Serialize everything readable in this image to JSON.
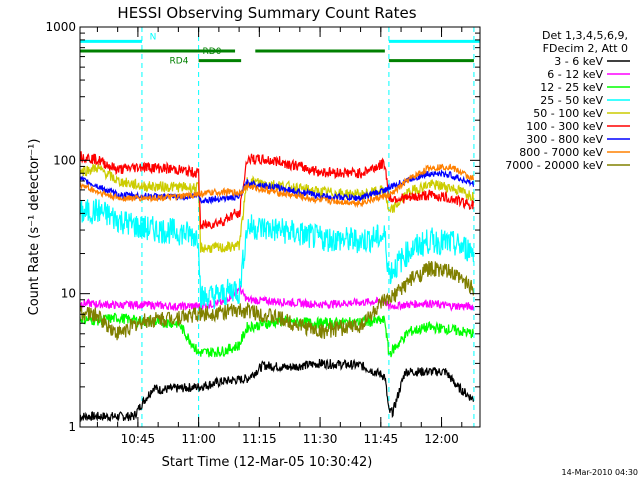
{
  "chart_data": {
    "type": "line",
    "title": "HESSI Observing Summary Count Rates",
    "xlabel": "Start Time (12-Mar-05 10:30:42)",
    "ylabel": "Count Rate (s⁻¹ detector⁻¹)",
    "yscale": "log",
    "ylim": [
      1,
      1000
    ],
    "xlim": [
      "10:30:42",
      "12:09:30"
    ],
    "x_ticks": [
      "10:45",
      "11:00",
      "11:15",
      "11:30",
      "11:45",
      "12:00"
    ],
    "y_ticks": [
      "1",
      "10",
      "100",
      "1000"
    ],
    "footer": "14-Mar-2010 04:30",
    "legend_header": [
      "Det 1,3,4,5,6,9,",
      "FDecim 2, Att 0"
    ],
    "night_boundaries": [
      "10:30:42",
      "10:46:00",
      "11:00:00",
      "11:47:00",
      "12:08:00"
    ],
    "bars": [
      {
        "label": "N",
        "color": "#00ffff",
        "y": 780,
        "segments": [
          [
            "10:30:42",
            "10:46:00"
          ],
          [
            "11:47:00",
            "12:09:30"
          ]
        ]
      },
      {
        "label": "RD0",
        "color": "#008000",
        "y": 660,
        "segments": [
          [
            "10:30:42",
            "11:09:00"
          ],
          [
            "11:14:00",
            "11:46:00"
          ]
        ]
      },
      {
        "label": "RD4",
        "color": "#008000",
        "y": 560,
        "segments": [
          [
            "11:00:00",
            "11:10:30"
          ],
          [
            "11:47:00",
            "12:08:00"
          ]
        ]
      }
    ],
    "series": [
      {
        "name": "3 - 6 keV",
        "color": "#000000",
        "x": [
          "10:30:42",
          "10:44:00",
          "10:46:00",
          "10:49:00",
          "10:50:00",
          "11:00:00",
          "11:06:00",
          "11:12:00",
          "11:16:00",
          "11:22:00",
          "11:30:00",
          "11:40:00",
          "11:46:00",
          "11:47:00",
          "11:48:00",
          "11:51:00",
          "12:01:00",
          "12:04:00",
          "12:08:00"
        ],
        "y": [
          1.2,
          1.2,
          1.5,
          2.0,
          1.9,
          2.0,
          2.2,
          2.3,
          2.9,
          2.8,
          3.0,
          2.9,
          2.4,
          1.3,
          1.3,
          2.6,
          2.6,
          2.0,
          1.6
        ]
      },
      {
        "name": "6 - 12 keV",
        "color": "#ff00ff",
        "x": [
          "10:30:42",
          "10:40:00",
          "10:46:00",
          "10:55:00",
          "11:00:00",
          "11:06:00",
          "11:10:00",
          "11:12:00",
          "11:20:00",
          "11:30:00",
          "11:40:00",
          "11:46:00",
          "11:47:00",
          "11:50:00",
          "11:56:00",
          "12:02:00",
          "12:08:00"
        ],
        "y": [
          8.5,
          8.2,
          8.3,
          8.0,
          8.1,
          8.6,
          11.0,
          9.0,
          8.7,
          8.3,
          8.6,
          8.8,
          8.0,
          8.2,
          8.5,
          8.1,
          8.0
        ]
      },
      {
        "name": "12 - 25 keV",
        "color": "#00ff00",
        "x": [
          "10:30:42",
          "10:35:00",
          "10:40:00",
          "10:46:00",
          "10:55:00",
          "11:00:00",
          "11:06:00",
          "11:10:00",
          "11:12:00",
          "11:20:00",
          "11:30:00",
          "11:40:00",
          "11:46:00",
          "11:47:00",
          "11:52:00",
          "11:57:00",
          "12:02:00",
          "12:08:00"
        ],
        "y": [
          6.5,
          6.3,
          6.6,
          6.2,
          6.0,
          3.6,
          3.7,
          4.1,
          5.6,
          6.2,
          6.0,
          6.1,
          6.3,
          3.5,
          5.2,
          5.6,
          5.4,
          5.0
        ]
      },
      {
        "name": "25 - 50 keV",
        "color": "#00ffff",
        "x": [
          "10:30:42",
          "10:35:00",
          "10:40:00",
          "10:46:00",
          "10:55:00",
          "11:00:00",
          "11:00:30",
          "11:06:00",
          "11:09:00",
          "11:10:00",
          "11:12:00",
          "11:20:00",
          "11:30:00",
          "11:40:00",
          "11:46:00",
          "11:47:00",
          "11:52:00",
          "11:57:00",
          "12:02:00",
          "12:08:00"
        ],
        "y": [
          40,
          42,
          36,
          31,
          29,
          27,
          9.3,
          9.8,
          11,
          10,
          32,
          30,
          26,
          25,
          27,
          14,
          21,
          25,
          24,
          21
        ]
      },
      {
        "name": "50 - 100 keV",
        "color": "#cccc00",
        "x": [
          "10:30:42",
          "10:35:00",
          "10:40:00",
          "10:46:00",
          "10:55:00",
          "11:00:00",
          "11:00:30",
          "11:06:00",
          "11:10:00",
          "11:12:00",
          "11:20:00",
          "11:30:00",
          "11:40:00",
          "11:46:00",
          "11:47:00",
          "11:52:00",
          "11:57:00",
          "12:02:00",
          "12:08:00"
        ],
        "y": [
          82,
          88,
          70,
          64,
          63,
          62,
          22,
          22,
          23,
          70,
          65,
          58,
          55,
          60,
          40,
          58,
          66,
          63,
          54
        ]
      },
      {
        "name": "100 - 300 keV",
        "color": "#ff0000",
        "x": [
          "10:30:42",
          "10:35:00",
          "10:40:00",
          "10:46:00",
          "10:55:00",
          "11:00:00",
          "11:00:30",
          "11:06:00",
          "11:09:00",
          "11:10:00",
          "11:12:00",
          "11:20:00",
          "11:30:00",
          "11:40:00",
          "11:46:00",
          "11:47:00",
          "11:52:00",
          "11:57:00",
          "12:02:00",
          "12:08:00"
        ],
        "y": [
          108,
          101,
          85,
          90,
          85,
          80,
          32,
          35,
          40,
          38,
          103,
          98,
          82,
          80,
          95,
          52,
          52,
          55,
          52,
          46
        ]
      },
      {
        "name": "300 - 800 keV",
        "color": "#0000ff",
        "x": [
          "10:30:42",
          "10:35:00",
          "10:40:00",
          "10:46:00",
          "10:55:00",
          "11:00:00",
          "11:00:30",
          "11:06:00",
          "11:10:00",
          "11:12:00",
          "11:20:00",
          "11:30:00",
          "11:40:00",
          "11:46:00",
          "11:47:00",
          "11:52:00",
          "11:57:00",
          "12:02:00",
          "12:08:00"
        ],
        "y": [
          72,
          64,
          55,
          54,
          53,
          55,
          50,
          52,
          53,
          68,
          62,
          54,
          52,
          60,
          62,
          72,
          80,
          78,
          66
        ]
      },
      {
        "name": "800 - 7000 keV",
        "color": "#ff8000",
        "x": [
          "10:30:42",
          "10:35:00",
          "10:40:00",
          "10:46:00",
          "10:55:00",
          "11:00:00",
          "11:06:00",
          "11:10:00",
          "11:12:00",
          "11:20:00",
          "11:30:00",
          "11:40:00",
          "11:46:00",
          "11:47:00",
          "11:52:00",
          "11:57:00",
          "12:02:00",
          "12:08:00"
        ],
        "y": [
          66,
          58,
          52,
          52,
          53,
          56,
          58,
          57,
          64,
          57,
          50,
          48,
          54,
          54,
          72,
          88,
          90,
          72
        ]
      },
      {
        "name": "7000 - 20000 keV",
        "color": "#808000",
        "x": [
          "10:30:42",
          "10:35:00",
          "10:40:00",
          "10:46:00",
          "10:55:00",
          "11:00:00",
          "11:06:00",
          "11:10:00",
          "11:12:00",
          "11:20:00",
          "11:30:00",
          "11:40:00",
          "11:46:00",
          "11:47:00",
          "11:52:00",
          "11:57:00",
          "12:02:00",
          "12:08:00"
        ],
        "y": [
          7.3,
          6.8,
          5.0,
          6.2,
          6.7,
          7.0,
          7.3,
          7.4,
          7.5,
          6.5,
          5.2,
          5.8,
          8.8,
          8.8,
          12.5,
          15.5,
          14.5,
          11.0
        ]
      }
    ]
  }
}
